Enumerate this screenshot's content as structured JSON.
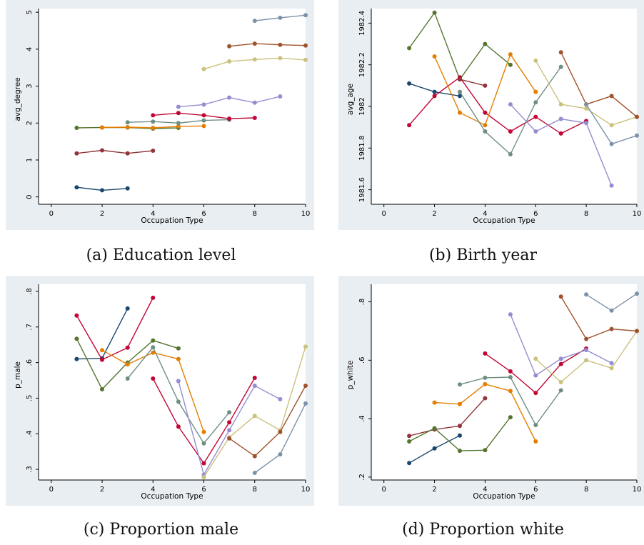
{
  "chart_data": [
    {
      "type": "line",
      "caption": "(a) Education level",
      "xlabel": "Occupation Type",
      "ylabel": "avg_degree",
      "xlim": [
        -0.5,
        10
      ],
      "ylim": [
        -0.2,
        5.1
      ],
      "xticks": [
        0,
        2,
        4,
        6,
        8,
        10
      ],
      "yticks": [
        0,
        1,
        2,
        3,
        4,
        5
      ],
      "ytick_labels": [
        "0",
        "1",
        "2",
        "3",
        "4",
        "5"
      ],
      "grid": false,
      "series": [
        {
          "color": "#1a476f",
          "x": [
            1,
            2,
            3
          ],
          "y": [
            0.26,
            0.18,
            0.23
          ]
        },
        {
          "color": "#90353b",
          "x": [
            1,
            2,
            3,
            4
          ],
          "y": [
            1.18,
            1.26,
            1.18,
            1.25
          ]
        },
        {
          "color": "#55752f",
          "x": [
            1,
            2,
            3,
            4,
            5
          ],
          "y": [
            1.87,
            1.88,
            1.88,
            1.85,
            1.87
          ]
        },
        {
          "color": "#e37e00",
          "x": [
            2,
            3,
            4,
            5,
            6
          ],
          "y": [
            1.88,
            1.89,
            1.87,
            1.91,
            1.92
          ]
        },
        {
          "color": "#6e8e84",
          "x": [
            3,
            4,
            5,
            6,
            7
          ],
          "y": [
            2.02,
            2.04,
            2.0,
            2.07,
            2.09
          ]
        },
        {
          "color": "#c10534",
          "x": [
            4,
            5,
            6,
            7,
            8
          ],
          "y": [
            2.21,
            2.27,
            2.21,
            2.12,
            2.14
          ]
        },
        {
          "color": "#938dd2",
          "x": [
            5,
            6,
            7,
            8,
            9
          ],
          "y": [
            2.44,
            2.5,
            2.69,
            2.55,
            2.72
          ]
        },
        {
          "color": "#cac27e",
          "x": [
            6,
            7,
            8,
            9,
            10
          ],
          "y": [
            3.46,
            3.67,
            3.72,
            3.76,
            3.71
          ]
        },
        {
          "color": "#a0522d",
          "x": [
            7,
            8,
            9,
            10
          ],
          "y": [
            4.08,
            4.15,
            4.12,
            4.1
          ]
        },
        {
          "color": "#7b92a8",
          "x": [
            8,
            9,
            10
          ],
          "y": [
            4.77,
            4.85,
            4.92
          ]
        }
      ]
    },
    {
      "type": "line",
      "caption": "(b) Birth year",
      "xlabel": "Occupation Type",
      "ylabel": "avg_age",
      "xlim": [
        -0.5,
        10
      ],
      "ylim": [
        1981.53,
        1982.47
      ],
      "xticks": [
        0,
        2,
        4,
        6,
        8,
        10
      ],
      "yticks": [
        1981.6,
        1981.8,
        1982,
        1982.2,
        1982.4
      ],
      "ytick_labels": [
        "1981.6",
        "1981.8",
        "1982",
        "1982.2",
        "1982.4"
      ],
      "grid": false,
      "series": [
        {
          "color": "#1a476f",
          "x": [
            1,
            2,
            3
          ],
          "y": [
            1982.11,
            1982.07,
            1982.05
          ]
        },
        {
          "color": "#55752f",
          "x": [
            1,
            2,
            3,
            4,
            5
          ],
          "y": [
            1982.28,
            1982.45,
            1982.13,
            1982.3,
            1982.2
          ]
        },
        {
          "color": "#c10534",
          "x": [
            1,
            2,
            3,
            4,
            5,
            6,
            7,
            8
          ],
          "y": [
            1981.91,
            1982.05,
            1982.14,
            1981.97,
            1981.88,
            1981.95,
            1981.87,
            1981.93
          ]
        },
        {
          "color": "#e37e00",
          "x": [
            2,
            3,
            4,
            5,
            6
          ],
          "y": [
            1982.24,
            1981.97,
            1981.91,
            1982.25,
            1982.07
          ]
        },
        {
          "color": "#6e8e84",
          "x": [
            3,
            4,
            5,
            6,
            7
          ],
          "y": [
            1982.07,
            1981.88,
            1981.77,
            1982.02,
            1982.19
          ]
        },
        {
          "color": "#90353b",
          "x": [
            3,
            4
          ],
          "y": [
            1982.13,
            1982.1
          ]
        },
        {
          "color": "#938dd2",
          "x": [
            5,
            6,
            7,
            8,
            9
          ],
          "y": [
            1982.01,
            1981.88,
            1981.94,
            1981.92,
            1981.62
          ]
        },
        {
          "color": "#cac27e",
          "x": [
            6,
            7,
            8,
            9,
            10
          ],
          "y": [
            1982.22,
            1982.01,
            1981.99,
            1981.91,
            1981.95
          ]
        },
        {
          "color": "#a0522d",
          "x": [
            7,
            8,
            9,
            10
          ],
          "y": [
            1982.26,
            1982.01,
            1982.05,
            1981.95
          ]
        },
        {
          "color": "#7b92a8",
          "x": [
            8,
            9,
            10
          ],
          "y": [
            1982.01,
            1981.82,
            1981.86
          ]
        }
      ]
    },
    {
      "type": "line",
      "caption": "(c) Proportion male",
      "xlabel": "Occupation Type",
      "ylabel": "p_male",
      "xlim": [
        -0.5,
        10
      ],
      "ylim": [
        0.27,
        0.82
      ],
      "xticks": [
        0,
        2,
        4,
        6,
        8,
        10
      ],
      "yticks": [
        0.3,
        0.4,
        0.5,
        0.6,
        0.7,
        0.8
      ],
      "ytick_labels": [
        ".3",
        ".4",
        ".5",
        ".6",
        ".7",
        ".8"
      ],
      "grid": false,
      "series": [
        {
          "color": "#1a476f",
          "x": [
            1,
            2,
            3
          ],
          "y": [
            0.61,
            0.612,
            0.752
          ]
        },
        {
          "color": "#c10534",
          "x": [
            1,
            2,
            3,
            4
          ],
          "y": [
            0.732,
            0.608,
            0.642,
            0.782
          ]
        },
        {
          "color": "#55752f",
          "x": [
            1,
            2,
            3,
            4,
            5
          ],
          "y": [
            0.667,
            0.525,
            0.6,
            0.662,
            0.64
          ]
        },
        {
          "color": "#e37e00",
          "x": [
            2,
            3,
            4,
            5,
            6
          ],
          "y": [
            0.635,
            0.595,
            0.628,
            0.61,
            0.405
          ]
        },
        {
          "color": "#6e8e84",
          "x": [
            3,
            4,
            5,
            6,
            7
          ],
          "y": [
            0.555,
            0.643,
            0.49,
            0.373,
            0.46
          ]
        },
        {
          "color": "#c10534",
          "x": [
            4,
            5,
            6,
            7,
            8
          ],
          "y": [
            0.555,
            0.42,
            0.317,
            0.432,
            0.557
          ]
        },
        {
          "color": "#938dd2",
          "x": [
            5,
            6,
            7,
            8,
            9
          ],
          "y": [
            0.548,
            0.285,
            0.41,
            0.535,
            0.497
          ]
        },
        {
          "color": "#cac27e",
          "x": [
            6,
            7,
            8,
            9,
            10
          ],
          "y": [
            0.278,
            0.39,
            0.45,
            0.41,
            0.645
          ]
        },
        {
          "color": "#a0522d",
          "x": [
            7,
            8,
            9,
            10
          ],
          "y": [
            0.387,
            0.337,
            0.405,
            0.535
          ]
        },
        {
          "color": "#7b92a8",
          "x": [
            8,
            9,
            10
          ],
          "y": [
            0.29,
            0.342,
            0.485
          ]
        }
      ]
    },
    {
      "type": "line",
      "caption": "(d) Proportion white",
      "xlabel": "Occupation Type",
      "ylabel": "p_white",
      "xlim": [
        -0.5,
        10
      ],
      "ylim": [
        0.19,
        0.86
      ],
      "xticks": [
        0,
        2,
        4,
        6,
        8,
        10
      ],
      "yticks": [
        0.2,
        0.4,
        0.6,
        0.8
      ],
      "ytick_labels": [
        ".2",
        ".4",
        ".6",
        ".8"
      ],
      "grid": false,
      "series": [
        {
          "color": "#1a476f",
          "x": [
            1,
            2,
            3
          ],
          "y": [
            0.248,
            0.298,
            0.342
          ]
        },
        {
          "color": "#90353b",
          "x": [
            1,
            2,
            3,
            4
          ],
          "y": [
            0.341,
            0.363,
            0.375,
            0.47
          ]
        },
        {
          "color": "#55752f",
          "x": [
            1,
            2,
            3,
            4,
            5
          ],
          "y": [
            0.322,
            0.367,
            0.29,
            0.292,
            0.405
          ]
        },
        {
          "color": "#e37e00",
          "x": [
            2,
            3,
            4,
            5,
            6
          ],
          "y": [
            0.455,
            0.45,
            0.518,
            0.495,
            0.322
          ]
        },
        {
          "color": "#6e8e84",
          "x": [
            3,
            4,
            5,
            6,
            7
          ],
          "y": [
            0.517,
            0.54,
            0.542,
            0.378,
            0.497
          ]
        },
        {
          "color": "#c10534",
          "x": [
            4,
            5,
            6,
            7,
            8
          ],
          "y": [
            0.623,
            0.562,
            0.488,
            0.587,
            0.64
          ]
        },
        {
          "color": "#938dd2",
          "x": [
            5,
            6,
            7,
            8,
            9
          ],
          "y": [
            0.757,
            0.548,
            0.605,
            0.635,
            0.59
          ]
        },
        {
          "color": "#cac27e",
          "x": [
            6,
            7,
            8,
            9,
            10
          ],
          "y": [
            0.605,
            0.525,
            0.6,
            0.573,
            0.7
          ]
        },
        {
          "color": "#a0522d",
          "x": [
            7,
            8,
            9,
            10
          ],
          "y": [
            0.818,
            0.673,
            0.707,
            0.7
          ]
        },
        {
          "color": "#7b92a8",
          "x": [
            8,
            9,
            10
          ],
          "y": [
            0.825,
            0.77,
            0.828
          ]
        }
      ]
    }
  ]
}
